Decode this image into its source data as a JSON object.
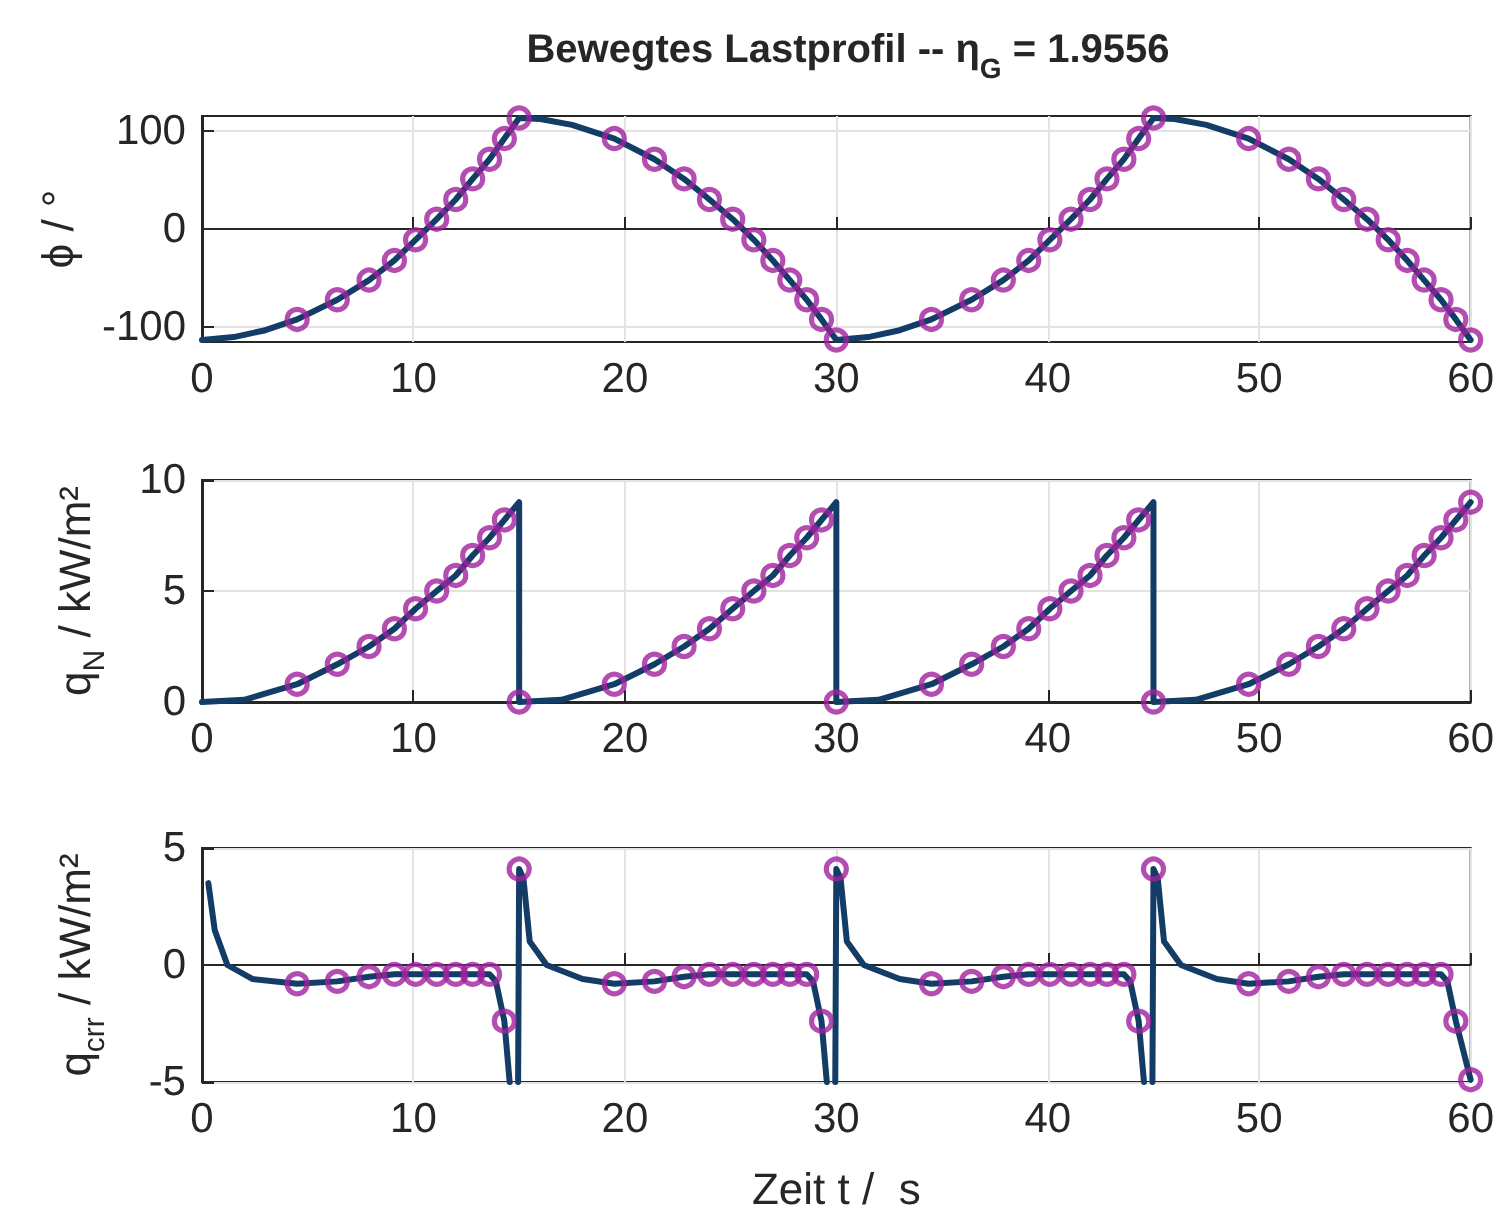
{
  "chart_data": [
    {
      "type": "line",
      "title": "Bewegtes Lastprofil -- η$_{G}$ = 1.9556",
      "ylabel": "ϕ / °",
      "xlim": [
        0,
        60
      ],
      "xticks": [
        0,
        10,
        20,
        30,
        40,
        50,
        60
      ],
      "ylim": [
        -115,
        115
      ],
      "yticks": [
        -100,
        0,
        100
      ],
      "grid": true,
      "series": [
        {
          "color": "#133c67",
          "marker": "none",
          "line_style": "solid",
          "x": [
            0,
            1.5,
            3,
            4.5,
            6.4,
            7.9,
            9.1,
            10.1,
            11.1,
            12.0,
            12.8,
            13.6,
            14.3,
            15,
            16,
            17.5,
            19.5,
            21.4,
            22.8,
            24.0,
            25.1,
            26.1,
            27.0,
            27.8,
            28.6,
            29.3,
            30,
            31.5,
            33,
            34.5,
            36.4,
            37.9,
            39.1,
            40.1,
            41.1,
            42.0,
            42.8,
            43.6,
            44.3,
            45,
            46,
            47.5,
            49.5,
            51.4,
            52.8,
            54.0,
            55.1,
            56.1,
            57.0,
            57.8,
            58.6,
            59.3,
            60
          ],
          "values": [
            -113,
            -110,
            -103,
            -92,
            -72,
            -52,
            -32,
            -11,
            10,
            30,
            51,
            71,
            92,
            113,
            112,
            106,
            92,
            71,
            51,
            30,
            10,
            -11,
            -32,
            -52,
            -72,
            -92,
            -113,
            -110,
            -103,
            -92,
            -72,
            -52,
            -32,
            -11,
            10,
            30,
            51,
            71,
            92,
            113,
            112,
            106,
            92,
            71,
            51,
            30,
            10,
            -11,
            -32,
            -52,
            -72,
            -92,
            -113
          ]
        },
        {
          "type": "scatter",
          "color": "#a0209e",
          "marker": "circle",
          "x": [
            4.5,
            6.4,
            7.9,
            9.1,
            10.1,
            11.1,
            12.0,
            12.8,
            13.6,
            14.3,
            15,
            19.5,
            21.4,
            22.8,
            24.0,
            25.1,
            26.1,
            27.0,
            27.8,
            28.6,
            29.3,
            30,
            34.5,
            36.4,
            37.9,
            39.1,
            40.1,
            41.1,
            42.0,
            42.8,
            43.6,
            44.3,
            45,
            49.5,
            51.4,
            52.8,
            54.0,
            55.1,
            56.1,
            57.0,
            57.8,
            58.6,
            59.3,
            60
          ],
          "values": [
            -92,
            -72,
            -52,
            -32,
            -11,
            10,
            30,
            51,
            71,
            92,
            113,
            92,
            71,
            51,
            30,
            10,
            -11,
            -32,
            -52,
            -72,
            -92,
            -113,
            -92,
            -72,
            -52,
            -32,
            -11,
            10,
            30,
            51,
            71,
            92,
            113,
            92,
            71,
            51,
            30,
            10,
            -11,
            -32,
            -52,
            -72,
            -92,
            -113
          ]
        }
      ]
    },
    {
      "type": "line",
      "ylabel": "q$_{N}$ / kW/m²",
      "xlim": [
        0,
        60
      ],
      "xticks": [
        0,
        10,
        20,
        30,
        40,
        50,
        60
      ],
      "ylim": [
        0,
        10
      ],
      "yticks": [
        0,
        5,
        10
      ],
      "grid": true,
      "series": [
        {
          "color": "#133c67",
          "marker": "none",
          "line_style": "solid",
          "x": [
            0,
            2,
            4.5,
            6.4,
            7.9,
            9.1,
            10.1,
            11.1,
            12.0,
            12.8,
            13.6,
            14.3,
            15,
            15,
            17,
            19.5,
            21.4,
            22.8,
            24.0,
            25.1,
            26.1,
            27.0,
            27.8,
            28.6,
            29.3,
            30,
            30,
            32,
            34.5,
            36.4,
            37.9,
            39.1,
            40.1,
            41.1,
            42.0,
            42.8,
            43.6,
            44.3,
            45,
            45,
            47,
            49.5,
            51.4,
            52.8,
            54.0,
            55.1,
            56.1,
            57.0,
            57.8,
            58.6,
            59.3,
            60
          ],
          "values": [
            0,
            0.1,
            0.8,
            1.7,
            2.5,
            3.3,
            4.2,
            5,
            5.7,
            6.6,
            7.4,
            8.2,
            9,
            0,
            0.1,
            0.8,
            1.7,
            2.5,
            3.3,
            4.2,
            5,
            5.7,
            6.6,
            7.4,
            8.2,
            9,
            0,
            0.1,
            0.8,
            1.7,
            2.5,
            3.3,
            4.2,
            5,
            5.7,
            6.6,
            7.4,
            8.2,
            9,
            0,
            0.1,
            0.8,
            1.7,
            2.5,
            3.3,
            4.2,
            5,
            5.7,
            6.6,
            7.4,
            8.2,
            9
          ]
        },
        {
          "type": "scatter",
          "color": "#a0209e",
          "marker": "circle",
          "x": [
            4.5,
            6.4,
            7.9,
            9.1,
            10.1,
            11.1,
            12.0,
            12.8,
            13.6,
            14.3,
            15,
            19.5,
            21.4,
            22.8,
            24.0,
            25.1,
            26.1,
            27.0,
            27.8,
            28.6,
            29.3,
            30,
            34.5,
            36.4,
            37.9,
            39.1,
            40.1,
            41.1,
            42.0,
            42.8,
            43.6,
            44.3,
            45,
            49.5,
            51.4,
            52.8,
            54.0,
            55.1,
            56.1,
            57.0,
            57.8,
            58.6,
            59.3,
            60
          ],
          "values": [
            0.8,
            1.7,
            2.5,
            3.3,
            4.2,
            5,
            5.7,
            6.6,
            7.4,
            8.2,
            0,
            0.8,
            1.7,
            2.5,
            3.3,
            4.2,
            5,
            5.7,
            6.6,
            7.4,
            8.2,
            0,
            0.8,
            1.7,
            2.5,
            3.3,
            4.2,
            5,
            5.7,
            6.6,
            7.4,
            8.2,
            0,
            0.8,
            1.7,
            2.5,
            3.3,
            4.2,
            5,
            5.7,
            6.6,
            7.4,
            8.2,
            9
          ]
        }
      ]
    },
    {
      "type": "line",
      "xlabel": "Zeit t /  s",
      "ylabel": "q$_{crr}$ / kW/m²",
      "xlim": [
        0,
        60
      ],
      "xticks": [
        0,
        10,
        20,
        30,
        40,
        50,
        60
      ],
      "ylim": [
        -5,
        5
      ],
      "yticks": [
        -5,
        0,
        5
      ],
      "grid": true,
      "series": [
        {
          "color": "#133c67",
          "marker": "none",
          "line_style": "solid",
          "x": [
            0.3,
            0.6,
            1.2,
            2.4,
            4.5,
            6.4,
            7.9,
            9.1,
            10.1,
            11.1,
            12.0,
            12.8,
            13.6,
            13.9,
            14.3,
            14.55,
            14.75,
            14.95,
            15,
            15.2,
            15.5,
            16.3,
            18,
            19.5,
            21.4,
            22.8,
            24.0,
            25.1,
            26.1,
            27.0,
            27.8,
            28.6,
            28.9,
            29.3,
            29.55,
            29.75,
            29.95,
            30,
            30.2,
            30.5,
            31.3,
            33,
            34.5,
            36.4,
            37.9,
            39.1,
            40.1,
            41.1,
            42.0,
            42.8,
            43.6,
            43.9,
            44.3,
            44.55,
            44.75,
            44.95,
            45,
            45.2,
            45.5,
            46.3,
            48,
            49.5,
            51.4,
            52.8,
            54.0,
            55.1,
            56.1,
            57.0,
            57.8,
            58.6,
            58.9,
            59.3,
            60
          ],
          "values": [
            3.5,
            1.5,
            0,
            -0.6,
            -0.8,
            -0.7,
            -0.5,
            -0.4,
            -0.4,
            -0.4,
            -0.4,
            -0.4,
            -0.4,
            -0.7,
            -2.4,
            -5,
            null,
            -5,
            4.1,
            3.7,
            1,
            0,
            -0.6,
            -0.8,
            -0.7,
            -0.5,
            -0.4,
            -0.4,
            -0.4,
            -0.4,
            -0.4,
            -0.4,
            -0.7,
            -2.4,
            -5,
            null,
            -5,
            4.1,
            3.7,
            1,
            0,
            -0.6,
            -0.8,
            -0.7,
            -0.5,
            -0.4,
            -0.4,
            -0.4,
            -0.4,
            -0.4,
            -0.4,
            -0.7,
            -2.4,
            -5,
            null,
            -5,
            4.1,
            3.7,
            1,
            0,
            -0.6,
            -0.8,
            -0.7,
            -0.5,
            -0.4,
            -0.4,
            -0.4,
            -0.4,
            -0.4,
            -0.4,
            -0.7,
            -2.4,
            -4.9
          ]
        },
        {
          "type": "scatter",
          "color": "#a0209e",
          "marker": "circle",
          "x": [
            4.5,
            6.4,
            7.9,
            9.1,
            10.1,
            11.1,
            12.0,
            12.8,
            13.6,
            14.3,
            15,
            19.5,
            21.4,
            22.8,
            24.0,
            25.1,
            26.1,
            27.0,
            27.8,
            28.6,
            29.3,
            30,
            34.5,
            36.4,
            37.9,
            39.1,
            40.1,
            41.1,
            42.0,
            42.8,
            43.6,
            44.3,
            45,
            49.5,
            51.4,
            52.8,
            54.0,
            55.1,
            56.1,
            57.0,
            57.8,
            58.6,
            59.3,
            60
          ],
          "values": [
            -0.8,
            -0.7,
            -0.5,
            -0.4,
            -0.4,
            -0.4,
            -0.4,
            -0.4,
            -0.4,
            -2.4,
            4.1,
            -0.8,
            -0.7,
            -0.5,
            -0.4,
            -0.4,
            -0.4,
            -0.4,
            -0.4,
            -0.4,
            -2.4,
            4.1,
            -0.8,
            -0.7,
            -0.5,
            -0.4,
            -0.4,
            -0.4,
            -0.4,
            -0.4,
            -0.4,
            -2.4,
            4.1,
            -0.8,
            -0.7,
            -0.5,
            -0.4,
            -0.4,
            -0.4,
            -0.4,
            -0.4,
            -0.4,
            -2.4,
            -4.9
          ]
        }
      ]
    }
  ]
}
